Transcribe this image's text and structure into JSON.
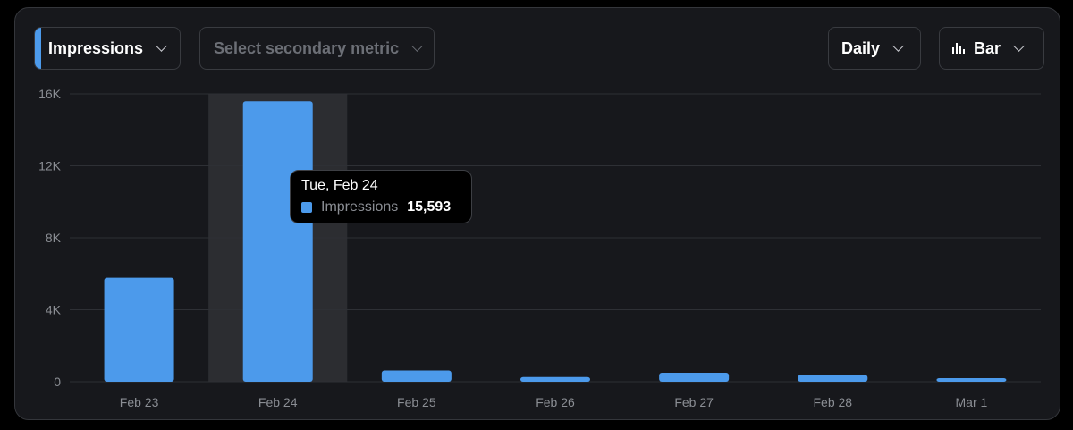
{
  "controls": {
    "metric": "Impressions",
    "secondary": "Select secondary metric",
    "interval": "Daily",
    "chart_type": "Bar"
  },
  "colors": {
    "bar": "#4c9aeb",
    "hover_band": "#2c2d31",
    "grid": "#2e3035",
    "axis_text": "#8b8e94"
  },
  "tooltip": {
    "date": "Tue, Feb 24",
    "metric": "Impressions",
    "value": "15,593"
  },
  "chart_data": {
    "type": "bar",
    "categories": [
      "Feb 23",
      "Feb 24",
      "Feb 25",
      "Feb 26",
      "Feb 27",
      "Feb 28",
      "Mar 1"
    ],
    "series": [
      {
        "name": "Impressions",
        "values": [
          5780,
          15593,
          620,
          260,
          500,
          380,
          150
        ]
      }
    ],
    "ylim": [
      0,
      16000
    ],
    "yticks": [
      0,
      4000,
      8000,
      12000,
      16000
    ],
    "ytick_labels": [
      "0",
      "4K",
      "8K",
      "12K",
      "16K"
    ],
    "highlighted_category": "Feb 24",
    "grid": true
  }
}
